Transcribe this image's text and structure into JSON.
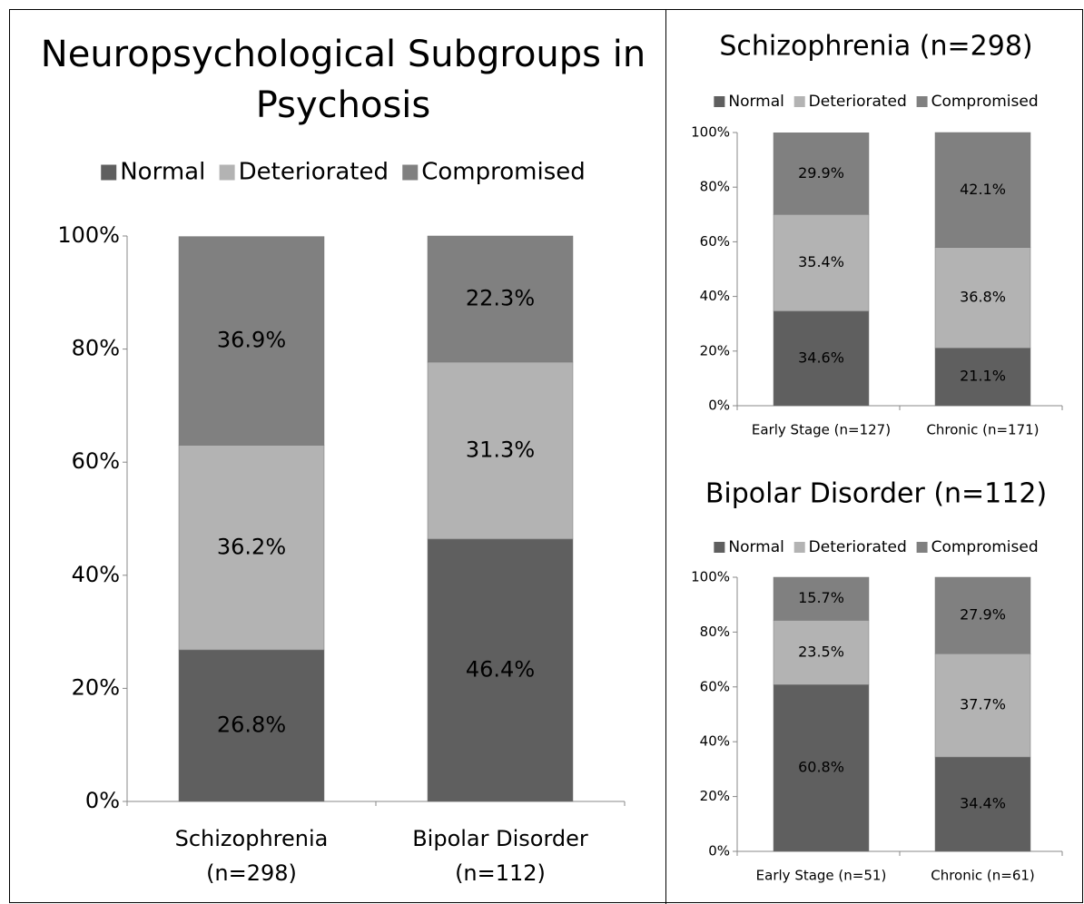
{
  "chart_data": [
    {
      "type": "stacked_bar",
      "title": "Neuropsychological Subgroups in\nPsychosis",
      "categories": [
        "Schizophrenia\n(n=298)",
        "Bipolar Disorder\n(n=112)"
      ],
      "series": [
        {
          "name": "Normal",
          "color": "#5f5f5f",
          "label_color": "#ffffff",
          "values": [
            26.8,
            46.4
          ],
          "value_labels": [
            "26.8%",
            "46.4%"
          ]
        },
        {
          "name": "Deteriorated",
          "color": "#b3b3b3",
          "label_color": "#000000",
          "values": [
            36.2,
            31.3
          ],
          "value_labels": [
            "36.2%",
            "31.3%"
          ]
        },
        {
          "name": "Compromised",
          "color": "#808080",
          "label_color": "#ffffff",
          "values": [
            36.9,
            22.3
          ],
          "value_labels": [
            "36.9%",
            "22.3%"
          ]
        }
      ],
      "ylim": [
        0,
        100
      ],
      "yticks": [
        {
          "value": 0,
          "label": "0%"
        },
        {
          "value": 20,
          "label": "20%"
        },
        {
          "value": 40,
          "label": "40%"
        },
        {
          "value": 60,
          "label": "60%"
        },
        {
          "value": 80,
          "label": "80%"
        },
        {
          "value": 100,
          "label": "100%"
        }
      ],
      "legend": "top"
    },
    {
      "type": "stacked_bar",
      "title": "Schizophrenia (n=298)",
      "categories": [
        "Early Stage (n=127)",
        "Chronic (n=171)"
      ],
      "series": [
        {
          "name": "Normal",
          "color": "#5f5f5f",
          "label_color": "#ffffff",
          "values": [
            34.6,
            21.1
          ],
          "value_labels": [
            "34.6%",
            "21.1%"
          ]
        },
        {
          "name": "Deteriorated",
          "color": "#b3b3b3",
          "label_color": "#000000",
          "values": [
            35.4,
            36.8
          ],
          "value_labels": [
            "35.4%",
            "36.8%"
          ]
        },
        {
          "name": "Compromised",
          "color": "#808080",
          "label_color": "#ffffff",
          "values": [
            29.9,
            42.1
          ],
          "value_labels": [
            "29.9%",
            "42.1%"
          ]
        }
      ],
      "ylim": [
        0,
        100
      ],
      "yticks": [
        {
          "value": 0,
          "label": "0%"
        },
        {
          "value": 20,
          "label": "20%"
        },
        {
          "value": 40,
          "label": "40%"
        },
        {
          "value": 60,
          "label": "60%"
        },
        {
          "value": 80,
          "label": "80%"
        },
        {
          "value": 100,
          "label": "100%"
        }
      ],
      "legend": "top"
    },
    {
      "type": "stacked_bar",
      "title": "Bipolar Disorder (n=112)",
      "categories": [
        "Early Stage (n=51)",
        "Chronic (n=61)"
      ],
      "series": [
        {
          "name": "Normal",
          "color": "#5f5f5f",
          "label_color": "#ffffff",
          "values": [
            60.8,
            34.4
          ],
          "value_labels": [
            "60.8%",
            "34.4%"
          ]
        },
        {
          "name": "Deteriorated",
          "color": "#b3b3b3",
          "label_color": "#000000",
          "values": [
            23.5,
            37.7
          ],
          "value_labels": [
            "23.5%",
            "37.7%"
          ]
        },
        {
          "name": "Compromised",
          "color": "#808080",
          "label_color": "#ffffff",
          "values": [
            15.7,
            27.9
          ],
          "value_labels": [
            "15.7%",
            "27.9%"
          ]
        }
      ],
      "ylim": [
        0,
        100
      ],
      "yticks": [
        {
          "value": 0,
          "label": "0%"
        },
        {
          "value": 20,
          "label": "20%"
        },
        {
          "value": 40,
          "label": "40%"
        },
        {
          "value": 60,
          "label": "60%"
        },
        {
          "value": 80,
          "label": "80%"
        },
        {
          "value": 100,
          "label": "100%"
        }
      ],
      "legend": "top"
    }
  ]
}
